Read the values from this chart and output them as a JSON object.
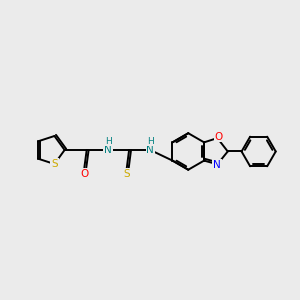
{
  "bg_color": "#ebebeb",
  "bond_color": "#000000",
  "s_color": "#ccaa00",
  "o_color": "#ff0000",
  "n_color": "#0000ff",
  "nh_color": "#008080",
  "lw": 1.4,
  "fig_size": [
    3.0,
    3.0
  ],
  "dpi": 100,
  "xlim": [
    0,
    10
  ],
  "ylim": [
    2,
    8
  ]
}
